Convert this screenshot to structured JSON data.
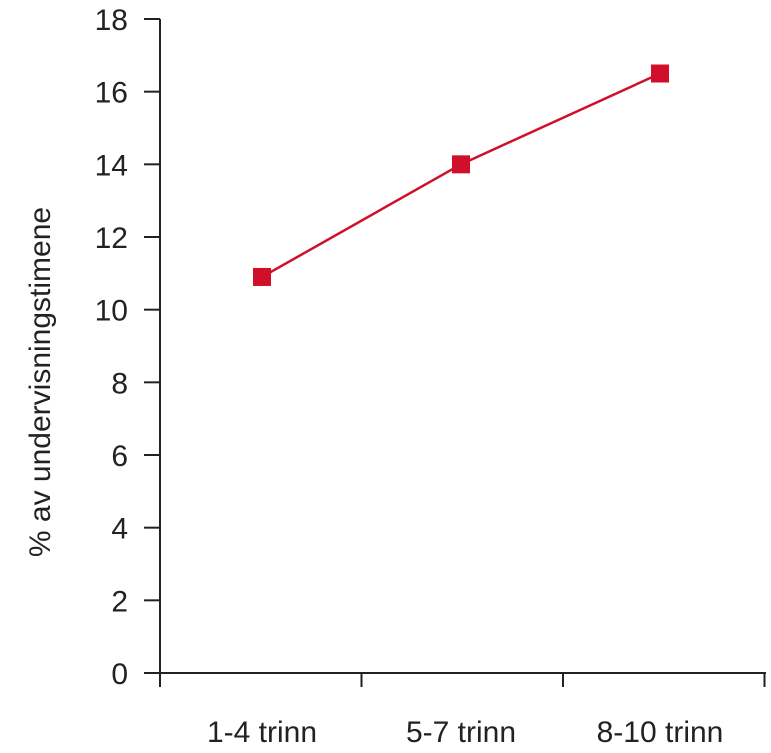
{
  "chart_data": {
    "type": "line",
    "categories": [
      "1-4 trinn",
      "5-7 trinn",
      "8-10 trinn"
    ],
    "series": [
      {
        "values": [
          10.9,
          14.0,
          16.5
        ],
        "color": "#d0102a"
      }
    ],
    "title": "",
    "xlabel": "",
    "ylabel": "% av undervisningstimene",
    "ylim": [
      0,
      18
    ],
    "yticks": [
      0,
      2,
      4,
      6,
      8,
      10,
      12,
      14,
      16,
      18
    ],
    "grid": false,
    "legend": "none",
    "marker": "square"
  }
}
